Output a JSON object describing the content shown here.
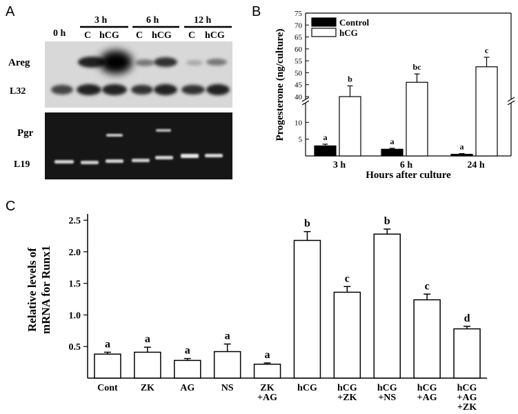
{
  "panels": {
    "a": "A",
    "b": "B",
    "c": "C"
  },
  "panel_a": {
    "time_labels": [
      "0 h",
      "3 h",
      "6 h",
      "12 h"
    ],
    "lane_labels": [
      "C",
      "hCG",
      "C",
      "hCG",
      "C",
      "hCG"
    ],
    "top_blot_rows": [
      "Areg",
      "L32"
    ],
    "bottom_gel_rows": [
      "Pgr",
      "L19"
    ]
  },
  "chart_data": [
    {
      "id": "B",
      "type": "bar",
      "title": "",
      "xlabel": "Hours after culture",
      "ylabel": "Progesterone (ng/culture)",
      "categories": [
        "3 h",
        "6 h",
        "24 h"
      ],
      "series": [
        {
          "name": "Control",
          "color": "#000000",
          "values": [
            3,
            2,
            0.5
          ],
          "errors": [
            0.5,
            0.3,
            0.2
          ],
          "letters": [
            "a",
            "a",
            "a"
          ]
        },
        {
          "name": "hCG",
          "color": "#ffffff",
          "values": [
            40,
            46,
            52.5
          ],
          "errors": [
            4.5,
            3.5,
            4
          ],
          "letters": [
            "b",
            "bc",
            "c"
          ]
        }
      ],
      "axis_break": [
        15,
        37
      ],
      "yticks_lower": [
        5,
        10
      ],
      "yticks_upper": [
        40,
        45,
        50,
        55,
        60,
        65,
        70,
        75
      ],
      "ylim": [
        0,
        75
      ],
      "legend_position": "top-left"
    },
    {
      "id": "C",
      "type": "bar",
      "title": "",
      "xlabel": "",
      "ylabel_lines": [
        "Relative levels of",
        "mRNA for Runx1"
      ],
      "categories": [
        [
          "Cont"
        ],
        [
          "ZK"
        ],
        [
          "AG"
        ],
        [
          "NS"
        ],
        [
          "ZK",
          "+AG"
        ],
        [
          "hCG"
        ],
        [
          "hCG",
          "+ZK"
        ],
        [
          "hCG",
          "+NS"
        ],
        [
          "hCG",
          "+AG"
        ],
        [
          "hCG",
          "+AG",
          "+ZK"
        ]
      ],
      "values": [
        0.38,
        0.41,
        0.28,
        0.42,
        0.22,
        2.18,
        1.36,
        2.28,
        1.24,
        0.78
      ],
      "errors": [
        0.03,
        0.08,
        0.03,
        0.12,
        0.02,
        0.14,
        0.09,
        0.08,
        0.09,
        0.04
      ],
      "letters": [
        "a",
        "a",
        "a",
        "a",
        "a",
        "b",
        "c",
        "b",
        "c",
        "d"
      ],
      "yticks": [
        0.5,
        1.0,
        1.5,
        2.0,
        2.5
      ],
      "ylim": [
        0,
        2.6
      ]
    }
  ]
}
